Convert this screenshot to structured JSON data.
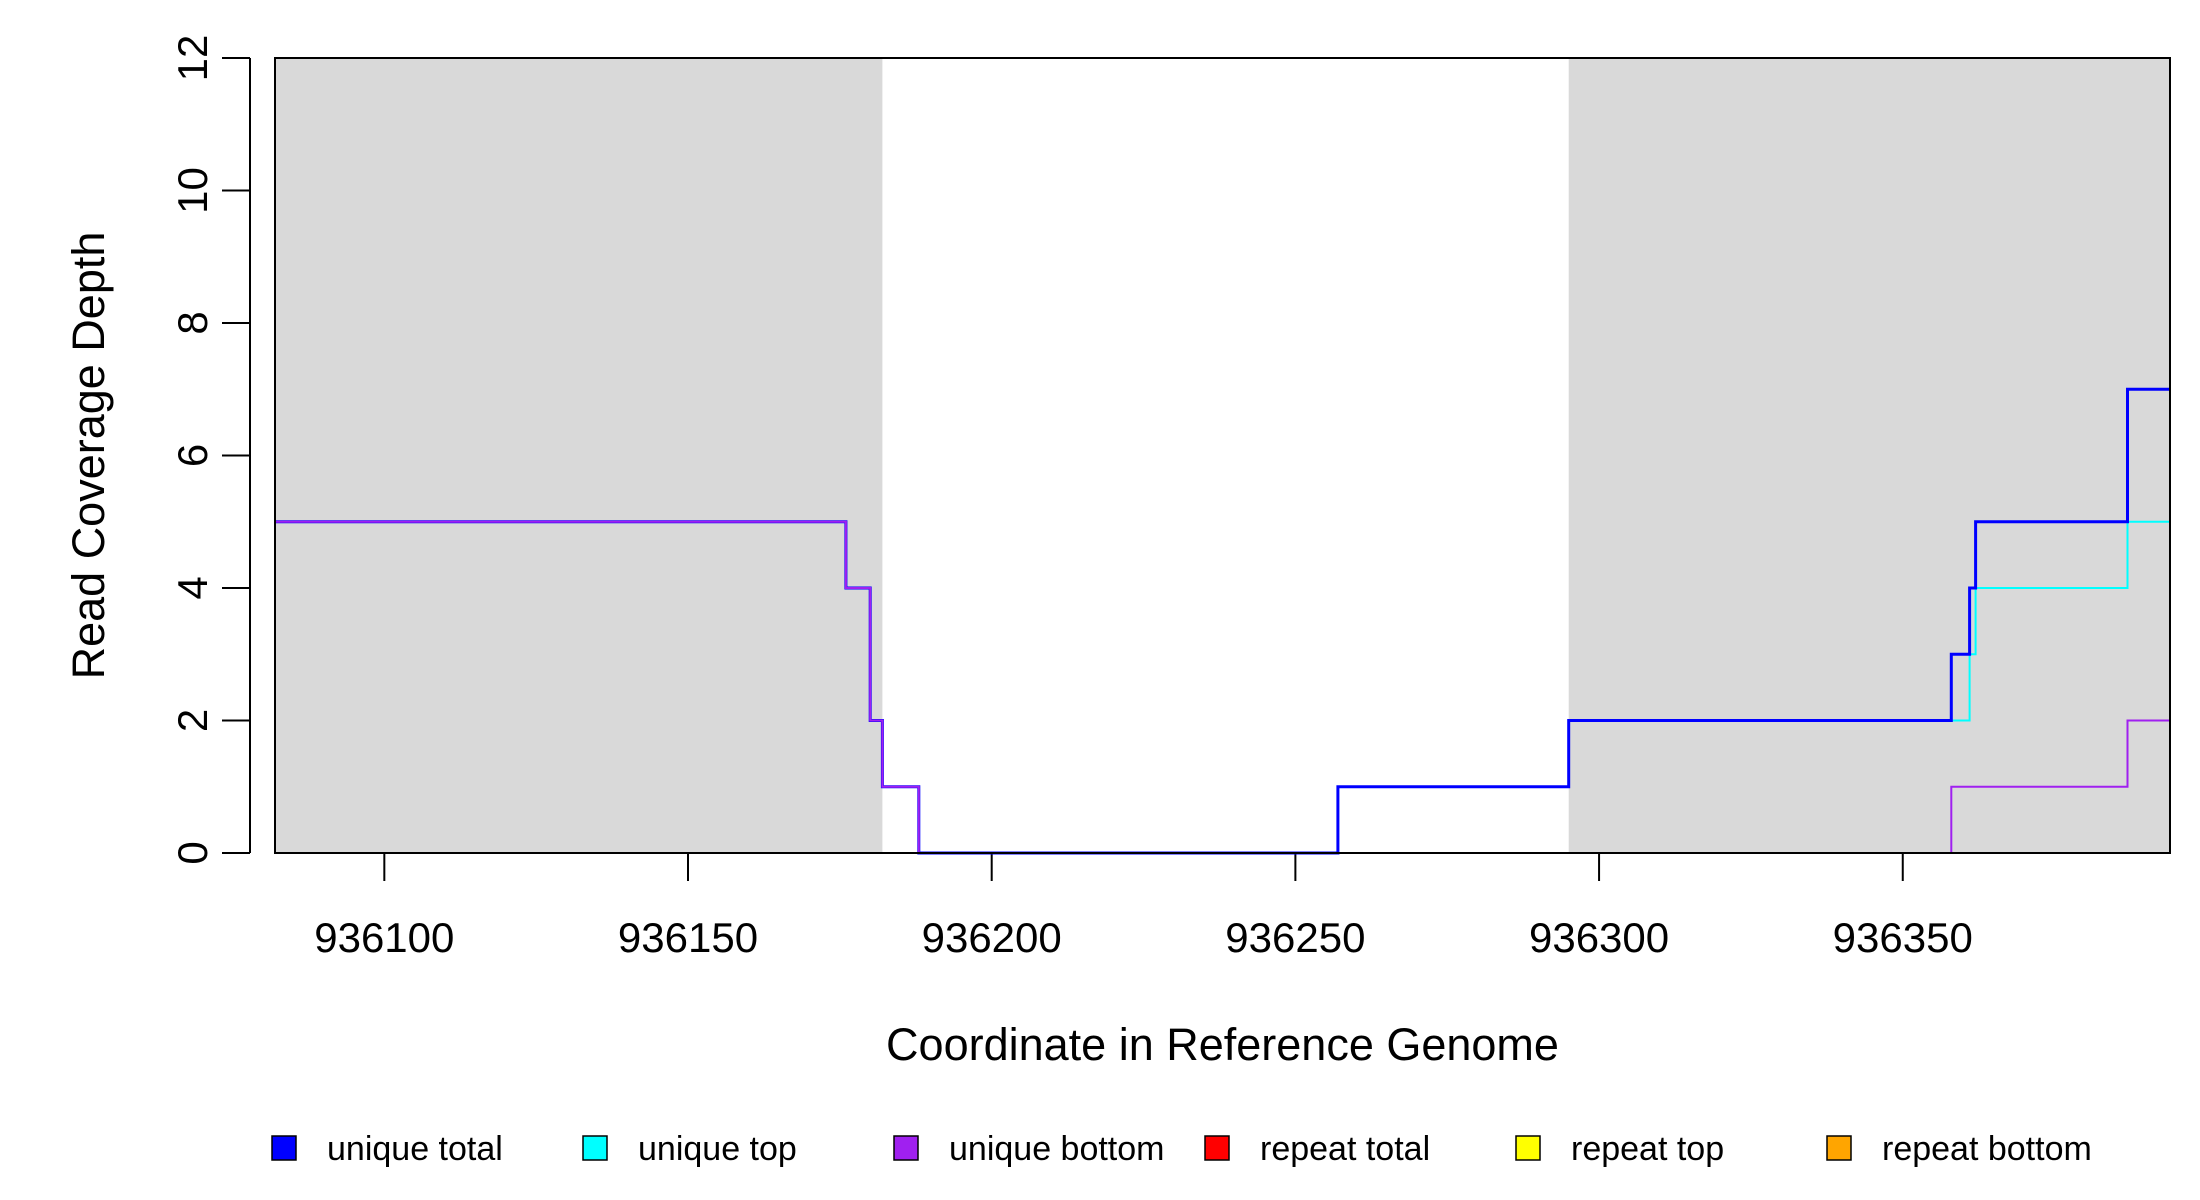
{
  "chart_data": {
    "type": "line",
    "title": "",
    "xlabel": "Coordinate in Reference Genome",
    "ylabel": "Read Coverage Depth",
    "xlim": [
      936082,
      936394
    ],
    "ylim": [
      0,
      12
    ],
    "x_ticks": [
      936100,
      936150,
      936200,
      936250,
      936300,
      936350
    ],
    "y_ticks": [
      0,
      2,
      4,
      6,
      8,
      10,
      12
    ],
    "shaded_regions": [
      {
        "x": [
          936082,
          936182
        ],
        "color": "#d9d9d9"
      },
      {
        "x": [
          936295,
          936394
        ],
        "color": "#d9d9d9"
      }
    ],
    "legend_position": "bottom",
    "series": [
      {
        "name": "unique total",
        "color": "#0000ff",
        "step": true,
        "points": [
          [
            936082,
            5
          ],
          [
            936176,
            5
          ],
          [
            936176,
            4
          ],
          [
            936180,
            4
          ],
          [
            936180,
            2
          ],
          [
            936182,
            2
          ],
          [
            936182,
            1
          ],
          [
            936188,
            1
          ],
          [
            936188,
            0
          ],
          [
            936257,
            0
          ],
          [
            936257,
            1
          ],
          [
            936295,
            1
          ],
          [
            936295,
            2
          ],
          [
            936358,
            2
          ],
          [
            936358,
            3
          ],
          [
            936361,
            3
          ],
          [
            936361,
            4
          ],
          [
            936362,
            4
          ],
          [
            936362,
            5
          ],
          [
            936387,
            5
          ],
          [
            936387,
            7
          ],
          [
            936394,
            7
          ]
        ]
      },
      {
        "name": "unique top",
        "color": "#00ffff",
        "step": true,
        "points": [
          [
            936082,
            0
          ],
          [
            936257,
            0
          ],
          [
            936257,
            1
          ],
          [
            936295,
            1
          ],
          [
            936295,
            2
          ],
          [
            936361,
            2
          ],
          [
            936361,
            3
          ],
          [
            936362,
            3
          ],
          [
            936362,
            4
          ],
          [
            936387,
            4
          ],
          [
            936387,
            5
          ],
          [
            936394,
            5
          ]
        ]
      },
      {
        "name": "unique bottom",
        "color": "#a020f0",
        "step": true,
        "points": [
          [
            936082,
            5
          ],
          [
            936176,
            5
          ],
          [
            936176,
            4
          ],
          [
            936180,
            4
          ],
          [
            936180,
            2
          ],
          [
            936182,
            2
          ],
          [
            936182,
            1
          ],
          [
            936188,
            1
          ],
          [
            936188,
            0
          ],
          [
            936358,
            0
          ],
          [
            936358,
            1
          ],
          [
            936387,
            1
          ],
          [
            936387,
            2
          ],
          [
            936394,
            2
          ]
        ]
      },
      {
        "name": "repeat total",
        "color": "#ff0000",
        "step": true,
        "points": [
          [
            936082,
            0
          ],
          [
            936394,
            0
          ]
        ]
      },
      {
        "name": "repeat top",
        "color": "#ffff00",
        "step": true,
        "points": [
          [
            936082,
            0
          ],
          [
            936394,
            0
          ]
        ]
      },
      {
        "name": "repeat bottom",
        "color": "#ffa500",
        "step": true,
        "points": [
          [
            936082,
            0
          ],
          [
            936394,
            0
          ]
        ]
      }
    ]
  }
}
